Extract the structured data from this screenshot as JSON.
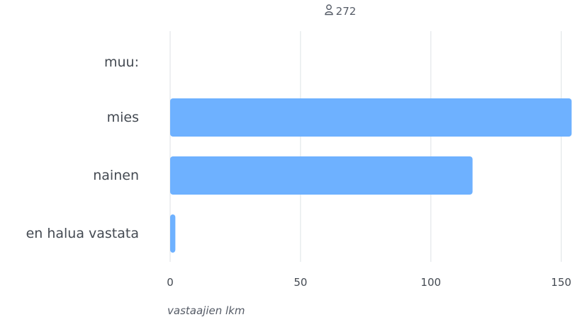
{
  "respondents": {
    "icon": "person-icon",
    "count": "272"
  },
  "chart_data": {
    "type": "bar",
    "orientation": "horizontal",
    "categories": [
      "muu:",
      "mies",
      "nainen",
      "en halua vastata"
    ],
    "values": [
      0,
      154,
      116,
      2
    ],
    "xlabel": "vastaajien lkm",
    "ylabel": "",
    "xlim": [
      0,
      155
    ],
    "xticks": [
      0,
      50,
      100,
      150
    ],
    "grid": true,
    "colors": {
      "bar": "#6eb1ff",
      "grid": "#e3e7ea"
    }
  }
}
